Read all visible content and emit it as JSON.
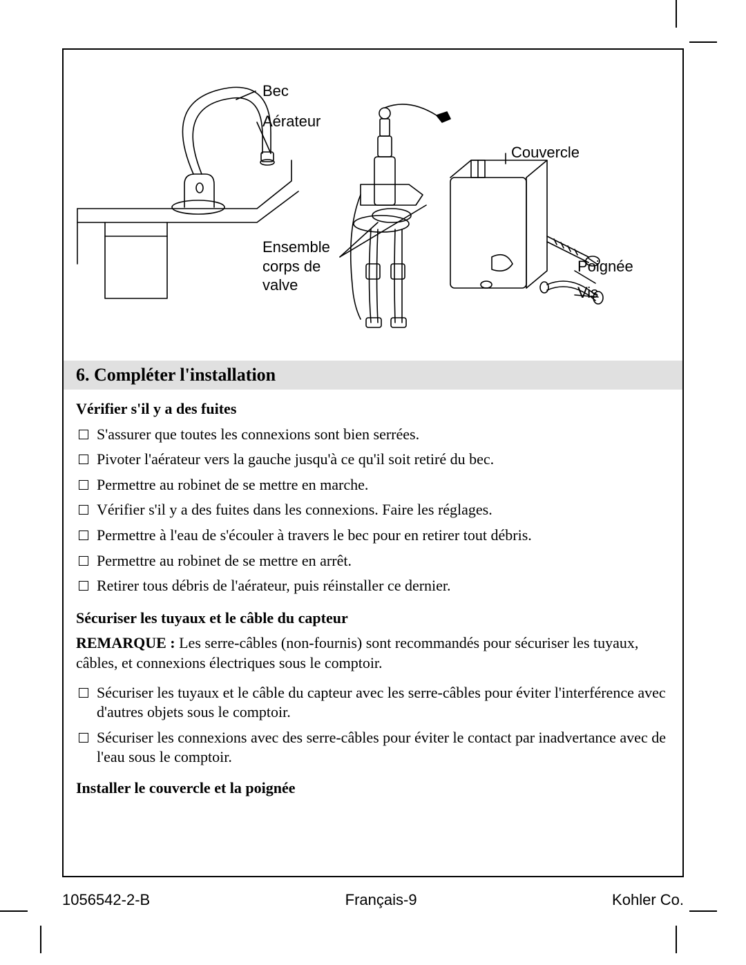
{
  "diagram": {
    "labels": {
      "bec": "Bec",
      "aerateur": "Aérateur",
      "couvercle": "Couvercle",
      "ensemble": "Ensemble\ncorps de\nvalve",
      "poignee": "Poignée",
      "vis": "Vis"
    },
    "stroke": "#000000",
    "stroke_width": 1.6,
    "bg": "#ffffff"
  },
  "section": {
    "number": "6.",
    "title": "Compléter l'installation"
  },
  "sub1": {
    "heading": "Vérifier s'il y a des fuites",
    "items": [
      "S'assurer que toutes les connexions sont bien serrées.",
      "Pivoter l'aérateur vers la gauche jusqu'à ce qu'il soit retiré du bec.",
      "Permettre au robinet de se mettre en marche.",
      "Vérifier s'il y a des fuites dans les connexions. Faire les réglages.",
      "Permettre à l'eau de s'écouler à travers le bec pour en retirer tout débris.",
      "Permettre au robinet de se mettre en arrêt.",
      "Retirer tous débris de l'aérateur, puis réinstaller ce dernier."
    ]
  },
  "sub2": {
    "heading": "Sécuriser les tuyaux et le câble du capteur",
    "note_label": "REMARQUE :",
    "note_text": " Les serre-câbles (non-fournis) sont recommandés pour sécuriser les tuyaux, câbles, et connexions électriques sous le comptoir.",
    "items": [
      "Sécuriser les tuyaux et le câble du capteur avec les serre-câbles pour éviter l'interférence avec d'autres objets sous le comptoir.",
      "Sécuriser les connexions avec des serre-câbles pour éviter le contact par inadvertance avec de l'eau sous le comptoir."
    ]
  },
  "sub3": {
    "heading": "Installer le couvercle et la poignée"
  },
  "footer": {
    "left": "1056542-2-B",
    "center": "Français-9",
    "right": "Kohler Co."
  },
  "colors": {
    "page_bg": "#ffffff",
    "title_bar_bg": "#e0e0e0",
    "text": "#000000"
  },
  "fonts": {
    "body_family": "Palatino",
    "label_family": "Arial",
    "title_size_pt": 19,
    "body_size_pt": 16,
    "label_size_pt": 16
  }
}
